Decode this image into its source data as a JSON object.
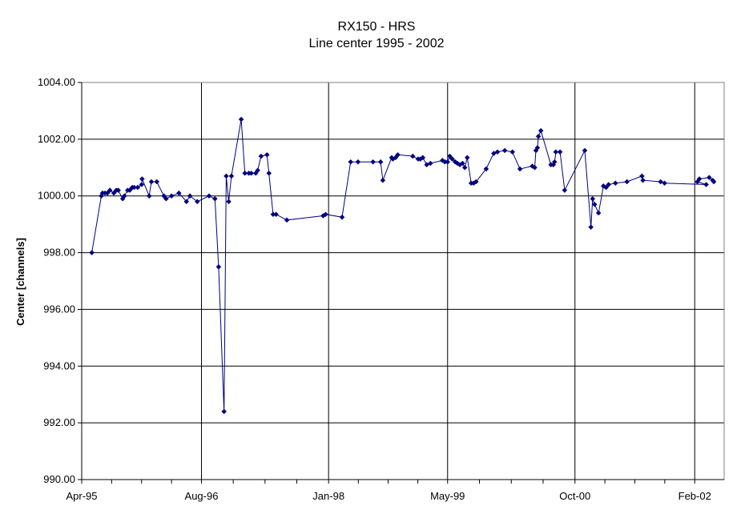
{
  "chart_data": {
    "type": "line",
    "title": "RX150 - HRS",
    "subtitle": "Line center 1995 - 2002",
    "xlabel": "",
    "ylabel": "Center [channels]",
    "ylim": [
      990.0,
      1004.0
    ],
    "xlim": [
      "1995-04-01",
      "2002-06-01"
    ],
    "y_ticks": [
      "1004.00",
      "1002.00",
      "1000.00",
      "998.00",
      "996.00",
      "994.00",
      "992.00",
      "990.00"
    ],
    "x_ticks": [
      {
        "label": "Apr-95",
        "date": "1995-04-01"
      },
      {
        "label": "Aug-96",
        "date": "1996-08-01"
      },
      {
        "label": "Jan-98",
        "date": "1998-01-01"
      },
      {
        "label": "May-99",
        "date": "1999-05-01"
      },
      {
        "label": "Oct-00",
        "date": "2000-10-01"
      },
      {
        "label": "Feb-02",
        "date": "2002-02-01"
      }
    ],
    "grid": true,
    "colors": {
      "series": "#000080",
      "grid": "#000000",
      "frame": "#808080"
    },
    "series": [
      {
        "x": [
          "1995-05-12",
          "1995-06-20",
          "1995-06-25",
          "1995-07-05",
          "1995-07-15",
          "1995-07-25",
          "1995-08-10",
          "1995-08-20",
          "1995-08-28",
          "1995-09-15",
          "1995-09-22",
          "1995-10-05",
          "1995-10-14",
          "1995-10-24",
          "1995-11-01",
          "1995-11-15",
          "1995-12-01",
          "1995-12-03",
          "1996-01-01",
          "1996-01-10",
          "1996-02-01",
          "1996-03-01",
          "1996-03-10",
          "1996-04-01",
          "1996-05-01",
          "1996-06-01",
          "1996-06-15",
          "1996-07-15",
          "1996-09-01",
          "1996-09-25",
          "1996-10-10",
          "1996-11-01",
          "1996-11-10",
          "1996-11-20",
          "1996-12-01",
          "1997-01-10",
          "1997-01-25",
          "1997-02-10",
          "1997-02-20",
          "1997-03-10",
          "1997-03-18",
          "1997-04-01",
          "1997-04-25",
          "1997-05-03",
          "1997-05-20",
          "1997-06-01",
          "1997-07-15",
          "1997-12-10",
          "1997-12-20",
          "1998-02-25",
          "1998-04-01",
          "1998-05-01",
          "1998-07-01",
          "1998-08-01",
          "1998-08-10",
          "1998-09-15",
          "1998-09-20",
          "1998-10-01",
          "1998-10-10",
          "1998-12-10",
          "1999-01-01",
          "1999-01-10",
          "1999-01-20",
          "1999-02-05",
          "1999-02-20",
          "1999-04-10",
          "1999-04-20",
          "1999-05-01",
          "1999-05-10",
          "1999-05-20",
          "1999-06-01",
          "1999-06-10",
          "1999-06-20",
          "1999-07-01",
          "1999-07-10",
          "1999-07-20",
          "1999-08-05",
          "1999-08-15",
          "1999-08-25",
          "1999-10-05",
          "1999-11-05",
          "1999-11-20",
          "1999-12-20",
          "2000-01-20",
          "2000-02-20",
          "2000-04-10",
          "2000-04-20",
          "2000-04-25",
          "2000-05-01",
          "2000-05-05",
          "2000-05-15",
          "2000-06-25",
          "2000-07-05",
          "2000-07-10",
          "2000-07-15",
          "2000-08-01",
          "2000-08-20",
          "2000-11-10",
          "2000-12-05",
          "2000-12-12",
          "2000-12-20",
          "2001-01-05",
          "2001-01-25",
          "2001-02-05",
          "2001-02-15",
          "2001-03-15",
          "2001-05-01",
          "2001-07-01",
          "2001-07-05",
          "2001-09-15",
          "2001-10-01",
          "2002-03-20",
          "2002-02-12",
          "2002-02-20",
          "2002-04-01",
          "2002-04-15",
          "2002-04-20"
        ],
        "values": [
          998.0,
          1000.0,
          1000.1,
          1000.1,
          1000.1,
          1000.2,
          1000.1,
          1000.2,
          1000.2,
          999.9,
          1000.0,
          1000.2,
          1000.2,
          1000.3,
          1000.3,
          1000.3,
          1000.4,
          1000.6,
          1000.0,
          1000.5,
          1000.5,
          1000.0,
          999.9,
          1000.0,
          1000.1,
          999.8,
          1000.0,
          999.8,
          1000.0,
          999.9,
          997.5,
          992.4,
          1000.7,
          999.8,
          1000.7,
          1002.7,
          1000.8,
          1000.8,
          1000.8,
          1000.8,
          1000.9,
          1001.4,
          1001.45,
          1000.8,
          999.35,
          999.35,
          999.15,
          999.3,
          999.35,
          999.25,
          1001.2,
          1001.2,
          1001.2,
          1001.2,
          1000.55,
          1001.35,
          1001.3,
          1001.35,
          1001.45,
          1001.4,
          1001.3,
          1001.3,
          1001.35,
          1001.1,
          1001.15,
          1001.25,
          1001.2,
          1001.2,
          1001.4,
          1001.3,
          1001.2,
          1001.15,
          1001.1,
          1001.15,
          1001.0,
          1001.35,
          1000.45,
          1000.45,
          1000.5,
          1000.95,
          1001.5,
          1001.55,
          1001.6,
          1001.55,
          1000.95,
          1001.05,
          1001.0,
          1001.6,
          1001.7,
          1002.1,
          1002.3,
          1001.1,
          1001.1,
          1001.2,
          1001.55,
          1001.55,
          1000.2,
          1001.6,
          998.9,
          999.9,
          999.7,
          999.4,
          1000.35,
          1000.3,
          1000.4,
          1000.45,
          1000.5,
          1000.7,
          1000.55,
          1000.5,
          1000.45,
          1000.4,
          1000.5,
          1000.6,
          1000.65,
          1000.55,
          1000.5
        ]
      }
    ]
  }
}
